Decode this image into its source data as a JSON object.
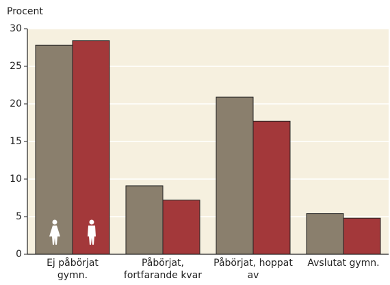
{
  "chart_data": {
    "type": "bar",
    "y_axis_label": "Procent",
    "categories": [
      "Ej påbörjat gymn.",
      "Påbörjat, fortfarande kvar",
      "Påbörjat, hoppat av",
      "Avslutat gymn."
    ],
    "series": [
      {
        "color": "#8a7f6d",
        "values": [
          27.8,
          9.1,
          20.9,
          5.4
        ]
      },
      {
        "color": "#a3383a",
        "values": [
          28.4,
          7.2,
          17.7,
          4.8
        ]
      }
    ],
    "ylim": [
      0,
      30
    ],
    "yticks": [
      0,
      5,
      10,
      15,
      20,
      25,
      30
    ],
    "grid": true
  }
}
